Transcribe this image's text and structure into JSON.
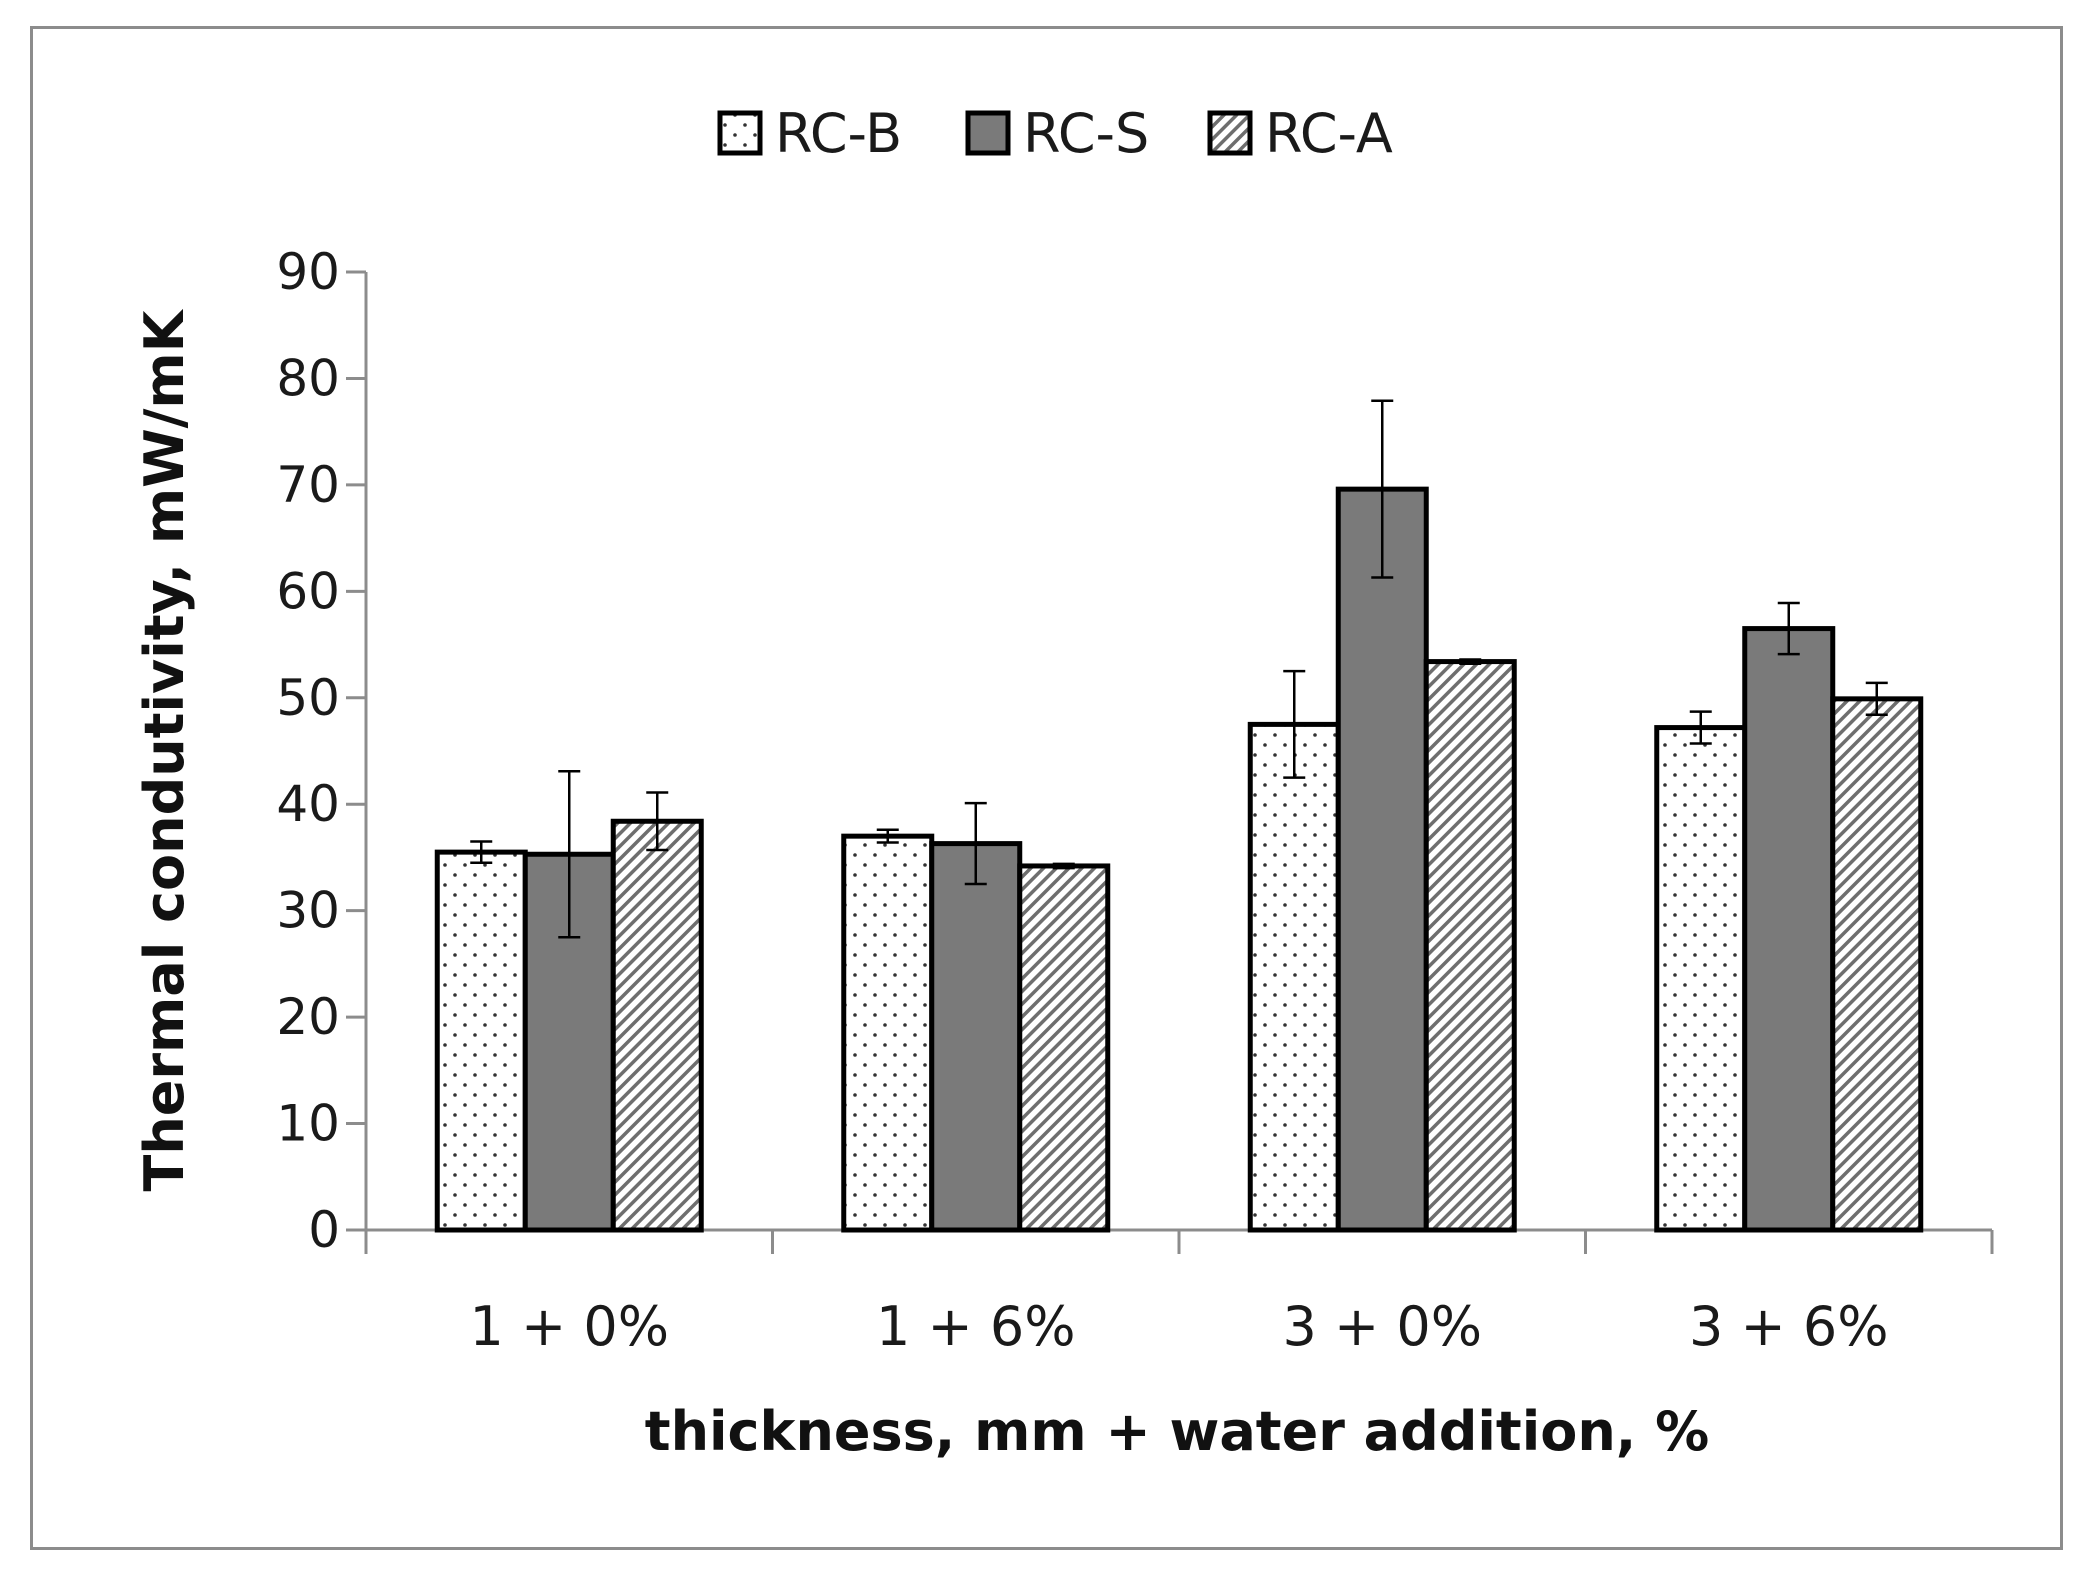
{
  "chart_data": {
    "type": "bar",
    "title": "",
    "xlabel": "thickness, mm + water addition, %",
    "ylabel": "Thermal condutivity, mW/mK",
    "categories": [
      "1 + 0%",
      "1 + 6%",
      "3 + 0%",
      "3 + 6%"
    ],
    "ylim": [
      0,
      90
    ],
    "yticks": [
      0,
      10,
      20,
      30,
      40,
      50,
      60,
      70,
      80,
      90
    ],
    "legend_position": "top-center",
    "series": [
      {
        "name": "RC-B",
        "fill": "dots",
        "color": "#ffffff",
        "values": [
          35.5,
          37.0,
          47.5,
          47.2
        ],
        "errors": [
          1.0,
          0.6,
          5.0,
          1.5
        ]
      },
      {
        "name": "RC-S",
        "fill": "solid",
        "color": "#7a7a7a",
        "values": [
          35.3,
          36.3,
          69.6,
          56.5
        ],
        "errors": [
          7.8,
          3.8,
          8.3,
          2.4
        ]
      },
      {
        "name": "RC-A",
        "fill": "hatch",
        "color": "#ffffff",
        "values": [
          38.4,
          34.2,
          53.4,
          49.9
        ],
        "errors": [
          2.7,
          0.2,
          0.2,
          1.5
        ]
      }
    ]
  }
}
